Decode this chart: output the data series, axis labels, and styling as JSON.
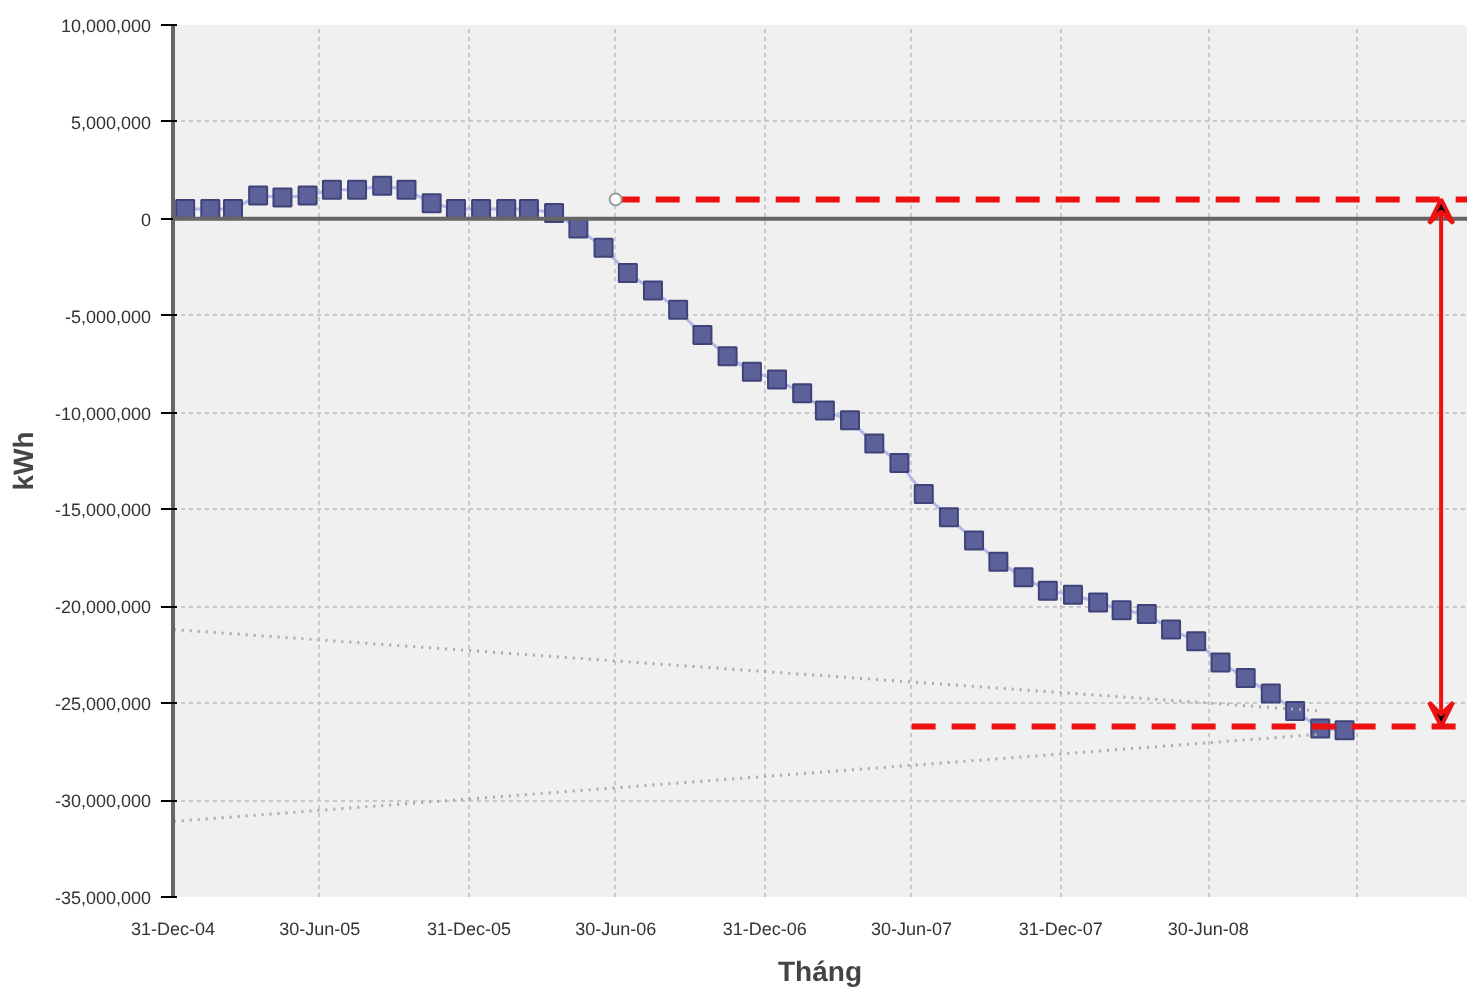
{
  "chart_data": {
    "type": "line",
    "xlabel": "Tháng",
    "ylabel": "kWh",
    "xlim": [
      "2004-12-31",
      "2009-05-15"
    ],
    "xticks": [
      {
        "value": "2004-12-31",
        "label": "31-Dec-04"
      },
      {
        "value": "2005-06-30",
        "label": "30-Jun-05"
      },
      {
        "value": "2005-12-31",
        "label": "31-Dec-05"
      },
      {
        "value": "2006-06-30",
        "label": "30-Jun-06"
      },
      {
        "value": "2006-12-31",
        "label": "31-Dec-06"
      },
      {
        "value": "2007-06-30",
        "label": "30-Jun-07"
      },
      {
        "value": "2007-12-31",
        "label": "31-Dec-07"
      },
      {
        "value": "2008-06-30",
        "label": "30-Jun-08"
      },
      {
        "value": "2008-12-31",
        "label": null
      }
    ],
    "ylim": [
      -35000000,
      10000000
    ],
    "yticks": [
      {
        "value": -35000000,
        "label": "-35,000,000"
      },
      {
        "value": -30000000,
        "label": "-30,000,000"
      },
      {
        "value": -25000000,
        "label": "-25,000,000"
      },
      {
        "value": -20000000,
        "label": "-20,000,000"
      },
      {
        "value": -15000000,
        "label": "-15,000,000"
      },
      {
        "value": -10000000,
        "label": "-10,000,000"
      },
      {
        "value": -5000000,
        "label": "-5,000,000"
      },
      {
        "value": 0,
        "label": "0"
      },
      {
        "value": 5000000,
        "label": "5,000,000"
      },
      {
        "value": 10000000,
        "label": "10,000,000"
      }
    ],
    "grid": true,
    "ref_lines": [
      {
        "axis": "y",
        "value": 0,
        "color": "#666666"
      }
    ],
    "series": [
      {
        "marker": "square",
        "color": "#5c6199",
        "x": [
          "2005-01-15",
          "2005-02-15",
          "2005-03-15",
          "2005-04-15",
          "2005-05-15",
          "2005-06-15",
          "2005-07-15",
          "2005-08-15",
          "2005-09-15",
          "2005-10-15",
          "2005-11-15",
          "2005-12-15",
          "2006-01-15",
          "2006-02-15",
          "2006-03-15",
          "2006-04-15",
          "2006-05-15",
          "2006-06-15",
          "2006-07-15",
          "2006-08-15",
          "2006-09-15",
          "2006-10-15",
          "2006-11-15",
          "2006-12-15",
          "2007-01-15",
          "2007-02-15",
          "2007-03-15",
          "2007-04-15",
          "2007-05-15",
          "2007-06-15",
          "2007-07-15",
          "2007-08-15",
          "2007-09-15",
          "2007-10-15",
          "2007-11-15",
          "2007-12-15",
          "2008-01-15",
          "2008-02-15",
          "2008-03-15",
          "2008-04-15",
          "2008-05-15",
          "2008-06-15",
          "2008-07-15",
          "2008-08-15",
          "2008-09-15",
          "2008-10-15",
          "2008-11-15",
          "2008-12-15"
        ],
        "values": [
          500000,
          500000,
          500000,
          1200000,
          1100000,
          1200000,
          1500000,
          1500000,
          1700000,
          1500000,
          800000,
          500000,
          500000,
          500000,
          500000,
          300000,
          -500000,
          -1500000,
          -2800000,
          -3700000,
          -4700000,
          -6000000,
          -7100000,
          -7900000,
          -8300000,
          -9000000,
          -9900000,
          -10400000,
          -11600000,
          -12600000,
          -14200000,
          -15400000,
          -16600000,
          -17700000,
          -18500000,
          -19200000,
          -19400000,
          -19800000,
          -20200000,
          -20400000,
          -21200000,
          -21800000,
          -22900000,
          -23700000,
          -24500000,
          -25400000,
          -26300000,
          -26400000
        ]
      },
      {
        "type": "line",
        "line_style": "dashed",
        "color": "#ee1111",
        "x": [
          "2006-06-30",
          "2009-05-15"
        ],
        "values": [
          1000000,
          1000000
        ]
      },
      {
        "type": "line",
        "line_style": "dashed",
        "color": "#ee1111",
        "x": [
          "2007-06-30",
          "2009-05-15"
        ],
        "values": [
          -26200000,
          -26200000
        ]
      },
      {
        "type": "scatter",
        "marker": "circle",
        "color": "#999999",
        "x": [
          "2006-06-30"
        ],
        "values": [
          1000000
        ]
      },
      {
        "type": "line",
        "line_style": "dotted",
        "color": "#aaaaaa",
        "x": [
          "2005-01-01",
          "2008-11-15"
        ],
        "values": [
          -21200000,
          -25400000
        ]
      },
      {
        "type": "line",
        "line_style": "dotted",
        "color": "#aaaaaa",
        "x": [
          "2005-01-01",
          "2008-11-15"
        ],
        "values": [
          -31100000,
          -26600000
        ]
      }
    ]
  }
}
